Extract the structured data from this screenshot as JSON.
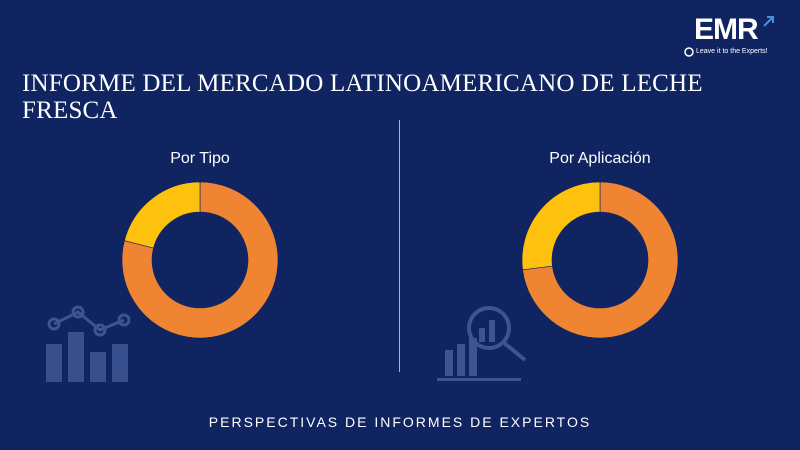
{
  "brand": {
    "logo_text": "EMR",
    "tagline": "Leave it to the Experts!"
  },
  "title": "INFORME DEL MERCADO LATINOAMERICANO DE LECHE FRESCA",
  "footer": "PERSPECTIVAS DE INFORMES DE EXPERTOS",
  "colors": {
    "background": "#0f2460",
    "orange": "#ef8532",
    "yellow": "#fec10e"
  },
  "chart_data": [
    {
      "type": "pie",
      "title": "Por Tipo",
      "donut": true,
      "slices": [
        {
          "value": 79,
          "color": "#ef8532"
        },
        {
          "value": 21,
          "color": "#fec10e"
        }
      ]
    },
    {
      "type": "pie",
      "title": "Por Aplicación",
      "donut": true,
      "slices": [
        {
          "value": 73,
          "color": "#ef8532"
        },
        {
          "value": 27,
          "color": "#fec10e"
        }
      ]
    }
  ]
}
